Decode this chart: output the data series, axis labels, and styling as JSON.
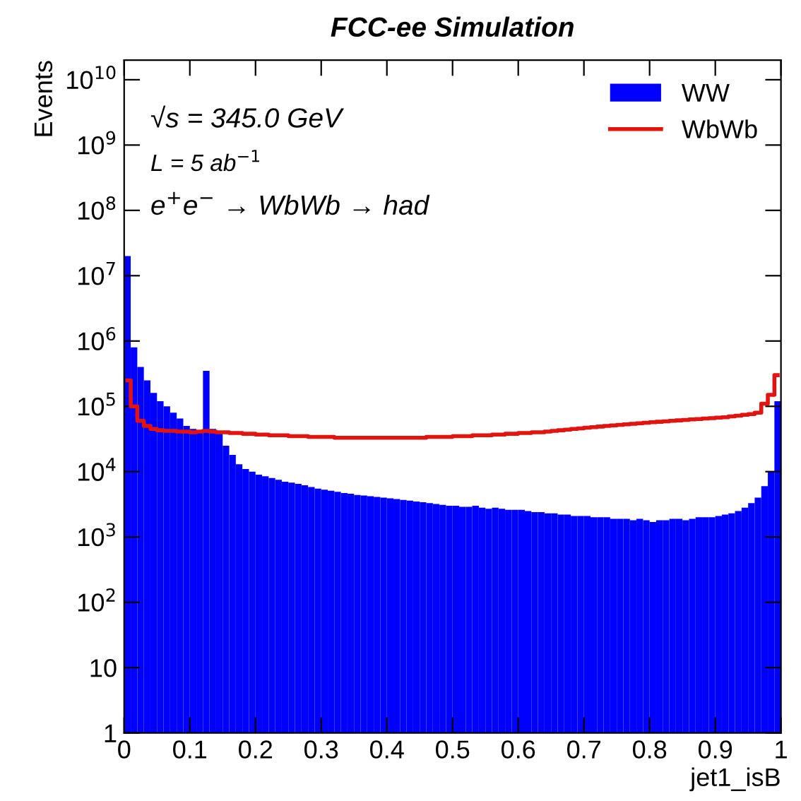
{
  "chart_data": {
    "type": "histogram",
    "title": "FCC-ee Simulation",
    "xlabel": "jet1_isB",
    "ylabel": "Events",
    "bins": [
      0,
      0.01,
      0.02,
      0.03,
      0.04,
      0.05,
      0.06,
      0.07,
      0.08,
      0.09,
      0.1,
      0.11,
      0.12,
      0.13,
      0.14,
      0.15,
      0.16,
      0.17,
      0.18,
      0.19,
      0.2,
      0.21,
      0.22,
      0.23,
      0.24,
      0.25,
      0.26,
      0.27,
      0.28,
      0.29,
      0.3,
      0.31,
      0.32,
      0.33,
      0.34,
      0.35,
      0.36,
      0.37,
      0.38,
      0.39,
      0.4,
      0.41,
      0.42,
      0.43,
      0.44,
      0.45,
      0.46,
      0.47,
      0.48,
      0.49,
      0.5,
      0.51,
      0.52,
      0.53,
      0.54,
      0.55,
      0.56,
      0.57,
      0.58,
      0.59,
      0.6,
      0.61,
      0.62,
      0.63,
      0.64,
      0.65,
      0.66,
      0.67,
      0.68,
      0.69,
      0.7,
      0.71,
      0.72,
      0.73,
      0.74,
      0.75,
      0.76,
      0.77,
      0.78,
      0.79,
      0.8,
      0.81,
      0.82,
      0.83,
      0.84,
      0.85,
      0.86,
      0.87,
      0.88,
      0.89,
      0.9,
      0.91,
      0.92,
      0.93,
      0.94,
      0.95,
      0.96,
      0.97,
      0.98,
      0.99,
      1
    ],
    "series": [
      {
        "name": "WW",
        "type": "histogram",
        "color": "#0000ff",
        "values": [
          20000000.0,
          800000.0,
          400000.0,
          250000.0,
          160000.0,
          120000.0,
          100000.0,
          80000.0,
          65000.0,
          50000.0,
          45000.0,
          42000.0,
          350000.0,
          45000.0,
          40000.0,
          25000.0,
          18000.0,
          13000.0,
          11000.0,
          10000.0,
          9000.0,
          8500.0,
          8000.0,
          7500.0,
          7000.0,
          6800.0,
          6500.0,
          6200.0,
          5800.0,
          5500.0,
          5300.0,
          5100.0,
          4900.0,
          4700.0,
          4600.0,
          4400.0,
          4300.0,
          4200.0,
          4100.0,
          4000.0,
          3900.0,
          3800.0,
          3700.0,
          3600.0,
          3500.0,
          3400.0,
          3300.0,
          3200.0,
          3100.0,
          3000.0,
          3000.0,
          2900.0,
          2900.0,
          3000.0,
          2800.0,
          2700.0,
          2800.0,
          2700.0,
          2600.0,
          2600.0,
          2600.0,
          2500.0,
          2400.0,
          2400.0,
          2300.0,
          2300.0,
          2200.0,
          2200.0,
          2100.0,
          2100.0,
          2100.0,
          2000.0,
          2000.0,
          2000.0,
          1900.0,
          1900.0,
          1900.0,
          1800.0,
          1900.0,
          1800.0,
          1700.0,
          1800.0,
          1800.0,
          1900.0,
          1900.0,
          1800.0,
          1900.0,
          2000.0,
          2000.0,
          2000.0,
          2100.0,
          2200.0,
          2300.0,
          2500.0,
          2800.0,
          3300.0,
          4000.0,
          6000.0,
          10000.0,
          120000.0
        ]
      },
      {
        "name": "WbWb",
        "type": "step",
        "color": "#e3140f",
        "x": [
          0.005,
          0.015,
          0.025,
          0.035,
          0.045,
          0.055,
          0.065,
          0.075,
          0.085,
          0.095,
          0.105,
          0.115,
          0.125,
          0.135,
          0.145,
          0.155,
          0.165,
          0.175,
          0.185,
          0.195,
          0.205,
          0.215,
          0.225,
          0.235,
          0.245,
          0.255,
          0.265,
          0.275,
          0.285,
          0.295,
          0.305,
          0.315,
          0.325,
          0.335,
          0.345,
          0.355,
          0.365,
          0.375,
          0.385,
          0.395,
          0.405,
          0.415,
          0.425,
          0.435,
          0.445,
          0.455,
          0.465,
          0.475,
          0.485,
          0.495,
          0.505,
          0.515,
          0.525,
          0.535,
          0.545,
          0.555,
          0.565,
          0.575,
          0.585,
          0.595,
          0.605,
          0.615,
          0.625,
          0.635,
          0.645,
          0.655,
          0.665,
          0.675,
          0.685,
          0.695,
          0.705,
          0.715,
          0.725,
          0.735,
          0.745,
          0.755,
          0.765,
          0.775,
          0.785,
          0.795,
          0.805,
          0.815,
          0.825,
          0.835,
          0.845,
          0.855,
          0.865,
          0.875,
          0.885,
          0.895,
          0.905,
          0.915,
          0.925,
          0.935,
          0.945,
          0.955,
          0.965,
          0.975,
          0.985,
          0.995
        ],
        "values": [
          250000.0,
          100000.0,
          60000.0,
          50000.0,
          45000.0,
          43000.0,
          42000.0,
          42000.0,
          41000.0,
          41000.0,
          40000.0,
          41000.0,
          42000.0,
          41000.0,
          40000.0,
          40000.0,
          39000.0,
          39000.0,
          38000.0,
          38000.0,
          37000.0,
          37000.0,
          36000.0,
          36000.0,
          36000.0,
          35000.0,
          35000.0,
          35000.0,
          34000.0,
          34000.0,
          34000.0,
          34000.0,
          33000.0,
          33000.0,
          33000.0,
          33000.0,
          33000.0,
          33000.0,
          33000.0,
          33000.0,
          33000.0,
          33000.0,
          33000.0,
          33000.0,
          33000.0,
          33000.0,
          34000.0,
          34000.0,
          34000.0,
          34000.0,
          35000.0,
          35000.0,
          35000.0,
          36000.0,
          36000.0,
          36000.0,
          37000.0,
          37000.0,
          38000.0,
          38000.0,
          39000.0,
          39000.0,
          40000.0,
          40000.0,
          41000.0,
          42000.0,
          43000.0,
          44000.0,
          45000.0,
          46000.0,
          47000.0,
          48000.0,
          49000.0,
          50000.0,
          51000.0,
          52000.0,
          53000.0,
          54000.0,
          55000.0,
          56000.0,
          57000.0,
          58000.0,
          59000.0,
          60000.0,
          61000.0,
          62000.0,
          63000.0,
          64000.0,
          65000.0,
          66000.0,
          67000.0,
          68000.0,
          70000.0,
          72000.0,
          74000.0,
          76000.0,
          80000.0,
          110000.0,
          150000.0,
          300000.0
        ]
      }
    ],
    "log": "y",
    "xlim": [
      0,
      1
    ],
    "ylim": [
      1,
      20000000000.0
    ],
    "xticks": [
      0,
      0.1,
      0.2,
      0.3,
      0.4,
      0.5,
      0.6,
      0.7,
      0.8,
      0.9,
      1
    ],
    "yticks": [
      1,
      10,
      {
        "value": 100,
        "label": "10$^{2}$"
      },
      {
        "value": 1000,
        "label": "10$^{3}$"
      },
      {
        "value": 10000,
        "label": "10$^{4}$"
      },
      {
        "value": 100000,
        "label": "10$^{5}$"
      },
      {
        "value": 1000000,
        "label": "10$^{6}$"
      },
      {
        "value": 10000000,
        "label": "10$^{7}$"
      },
      {
        "value": 100000000,
        "label": "10$^{8}$"
      },
      {
        "value": 1000000000,
        "label": "10$^{9}$"
      },
      {
        "value": 10000000000,
        "label": "10$^{10}$"
      }
    ],
    "annotations": [
      "√s = 345.0 GeV",
      "L = 5 ab$^{−1}$",
      "e$^{+}$e$^{−}$ → WbWb → had"
    ],
    "legend": "top right",
    "grid": false
  }
}
